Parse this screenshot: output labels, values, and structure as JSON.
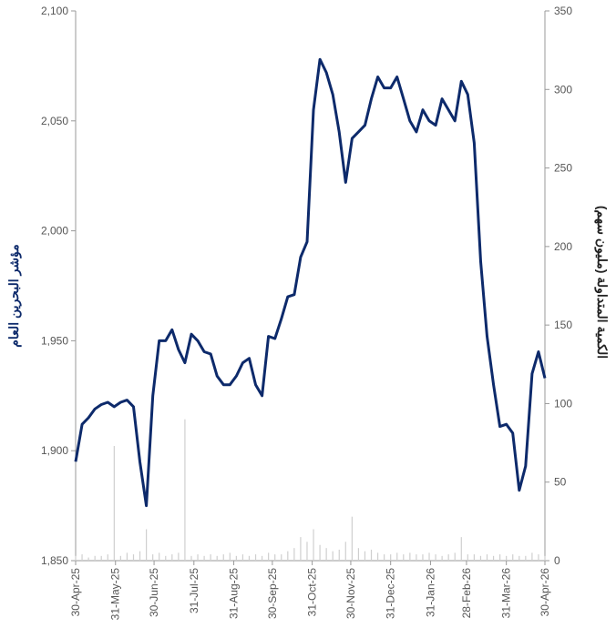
{
  "chart_data": {
    "type": "line",
    "ylabel": "مؤشر البحرين العام",
    "y2label": "الكمية المتداولة (مليون سهم)",
    "x": [
      "30-Apr-25",
      "05-May-25",
      "10-May-25",
      "15-May-25",
      "20-May-25",
      "25-May-25",
      "30-May-25",
      "04-Jun-25",
      "09-Jun-25",
      "14-Jun-25",
      "19-Jun-25",
      "24-Jun-25",
      "29-Jun-25",
      "04-Jul-25",
      "09-Jul-25",
      "14-Jul-25",
      "19-Jul-25",
      "24-Jul-25",
      "29-Jul-25",
      "03-Aug-25",
      "08-Aug-25",
      "13-Aug-25",
      "18-Aug-25",
      "23-Aug-25",
      "28-Aug-25",
      "02-Sep-25",
      "07-Sep-25",
      "12-Sep-25",
      "17-Sep-25",
      "22-Sep-25",
      "27-Sep-25",
      "02-Oct-25",
      "07-Oct-25",
      "12-Oct-25",
      "17-Oct-25",
      "22-Oct-25",
      "27-Oct-25",
      "01-Nov-25",
      "06-Nov-25",
      "11-Nov-25",
      "16-Nov-25",
      "21-Nov-25",
      "26-Nov-25",
      "01-Dec-25",
      "06-Dec-25",
      "11-Dec-25",
      "16-Dec-25",
      "21-Dec-25",
      "26-Dec-25",
      "31-Dec-25",
      "05-Jan-26",
      "10-Jan-26",
      "15-Jan-26",
      "20-Jan-26",
      "25-Jan-26",
      "30-Jan-26",
      "04-Feb-26",
      "09-Feb-26",
      "14-Feb-26",
      "19-Feb-26",
      "24-Feb-26",
      "01-Mar-26",
      "06-Mar-26",
      "11-Mar-26",
      "16-Mar-26",
      "21-Mar-26",
      "26-Mar-26",
      "31-Mar-26",
      "05-Apr-26",
      "10-Apr-26",
      "15-Apr-26",
      "20-Apr-26",
      "25-Apr-26",
      "30-Apr-26"
    ],
    "series": [
      {
        "color": "#0d2a6b",
        "values": [
          1895,
          1912,
          1915,
          1919,
          1921,
          1922,
          1920,
          1922,
          1923,
          1920,
          1895,
          1875,
          1925,
          1950,
          1950,
          1955,
          1946,
          1940,
          1953,
          1950,
          1945,
          1944,
          1934,
          1930,
          1930,
          1934,
          1940,
          1942,
          1930,
          1925,
          1952,
          1951,
          1960,
          1970,
          1971,
          1988,
          1995,
          2055,
          2078,
          2072,
          2062,
          2045,
          2022,
          2042,
          2045,
          2048,
          2060,
          2070,
          2065,
          2065,
          2070,
          2060,
          2050,
          2045,
          2055,
          2050,
          2048,
          2060,
          2055,
          2050,
          2068,
          2062,
          2040,
          1986,
          1952,
          1930,
          1911,
          1912,
          1908,
          1882,
          1893,
          1935,
          1945,
          1933
        ]
      },
      {
        "type": "bar",
        "axis": "y2",
        "color": "#cfcfcf",
        "values": [
          3,
          4,
          2,
          3,
          3,
          4,
          73,
          3,
          5,
          4,
          6,
          20,
          4,
          5,
          3,
          4,
          5,
          90,
          3,
          4,
          3,
          4,
          3,
          4,
          5,
          3,
          4,
          3,
          4,
          3,
          5,
          4,
          4,
          6,
          8,
          15,
          12,
          20,
          10,
          8,
          6,
          7,
          12,
          28,
          8,
          6,
          7,
          5,
          4,
          4,
          5,
          4,
          5,
          4,
          4,
          5,
          4,
          3,
          4,
          5,
          15,
          4,
          4,
          3,
          4,
          3,
          4,
          3,
          4,
          3,
          3,
          5,
          4,
          3
        ]
      }
    ],
    "xlim": [
      "30-Apr-25",
      "30-Apr-26"
    ],
    "xticks": [
      "30-Apr-25",
      "31-May-25",
      "30-Jun-25",
      "31-Jul-25",
      "31-Aug-25",
      "30-Sep-25",
      "31-Oct-25",
      "30-Nov-25",
      "31-Dec-25",
      "31-Jan-26",
      "28-Feb-26",
      "31-Mar-26",
      "30-Apr-26"
    ],
    "ylim": [
      1850,
      2100
    ],
    "yticks": [
      {
        "value": 1850,
        "label": "1,850"
      },
      {
        "value": 1900,
        "label": "1,900"
      },
      {
        "value": 1950,
        "label": "1,950"
      },
      {
        "value": 2000,
        "label": "2,000"
      },
      {
        "value": 2050,
        "label": "2,050"
      },
      {
        "value": 2100,
        "label": "2,100"
      }
    ],
    "y2lim": [
      0,
      350
    ],
    "y2ticks": [
      0,
      50,
      100,
      150,
      200,
      250,
      300,
      350
    ]
  }
}
